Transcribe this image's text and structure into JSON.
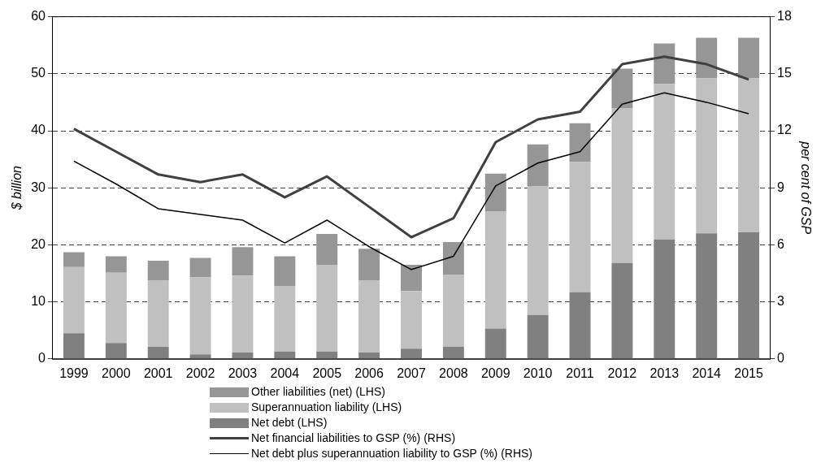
{
  "chart_data": {
    "type": "bar",
    "stacked": true,
    "categories": [
      "1999",
      "2000",
      "2001",
      "2002",
      "2003",
      "2004",
      "2005",
      "2006",
      "2007",
      "2008",
      "2009",
      "2010",
      "2011",
      "2012",
      "2013",
      "2014",
      "2015"
    ],
    "series": [
      {
        "name": "Net debt (LHS)",
        "color": "#808080",
        "values": [
          4.5,
          2.8,
          2.1,
          0.8,
          1.1,
          1.3,
          1.3,
          1.1,
          1.8,
          2.1,
          5.3,
          7.7,
          11.7,
          16.8,
          20.9,
          22.0,
          22.2
        ]
      },
      {
        "name": "Superannuation liability (LHS)",
        "color": "#c0c0c0",
        "values": [
          11.6,
          12.3,
          11.7,
          13.5,
          13.5,
          11.5,
          15.2,
          12.7,
          10.1,
          12.7,
          20.6,
          22.6,
          22.8,
          27.2,
          27.3,
          27.2,
          27.0
        ]
      },
      {
        "name": "Other liabilities (net) (LHS)",
        "color": "#969696",
        "values": [
          2.6,
          2.9,
          3.4,
          3.4,
          5.0,
          5.2,
          5.4,
          5.5,
          4.6,
          5.7,
          6.6,
          7.3,
          6.8,
          6.9,
          7.1,
          7.1,
          7.1
        ]
      },
      {
        "name": "Net financial liabilities to GSP (%) (RHS)",
        "type": "line",
        "axis": "y2",
        "color": "#404040",
        "values": [
          12.1,
          10.9,
          9.7,
          9.3,
          9.7,
          8.5,
          9.6,
          8.0,
          6.4,
          7.4,
          11.4,
          12.6,
          13.0,
          15.5,
          15.9,
          15.5,
          14.7
        ]
      },
      {
        "name": "Net debt plus superannuation liability to GSP (%) (RHS)",
        "type": "line",
        "axis": "y2",
        "color": "#000000",
        "values": [
          10.4,
          9.2,
          7.9,
          7.6,
          7.3,
          6.1,
          7.3,
          5.9,
          4.7,
          5.4,
          9.1,
          10.3,
          10.9,
          13.4,
          14.0,
          13.5,
          12.9
        ]
      }
    ],
    "ylabel": "$ billion",
    "y2label": "per cent of GSP",
    "ylim": [
      0,
      60
    ],
    "yticks": [
      0,
      10,
      20,
      30,
      40,
      50,
      60
    ],
    "y2lim": [
      0,
      18
    ],
    "y2ticks": [
      0,
      3,
      6,
      9,
      12,
      15,
      18
    ],
    "grid": "y",
    "legend": "bottom",
    "marker": "none"
  }
}
